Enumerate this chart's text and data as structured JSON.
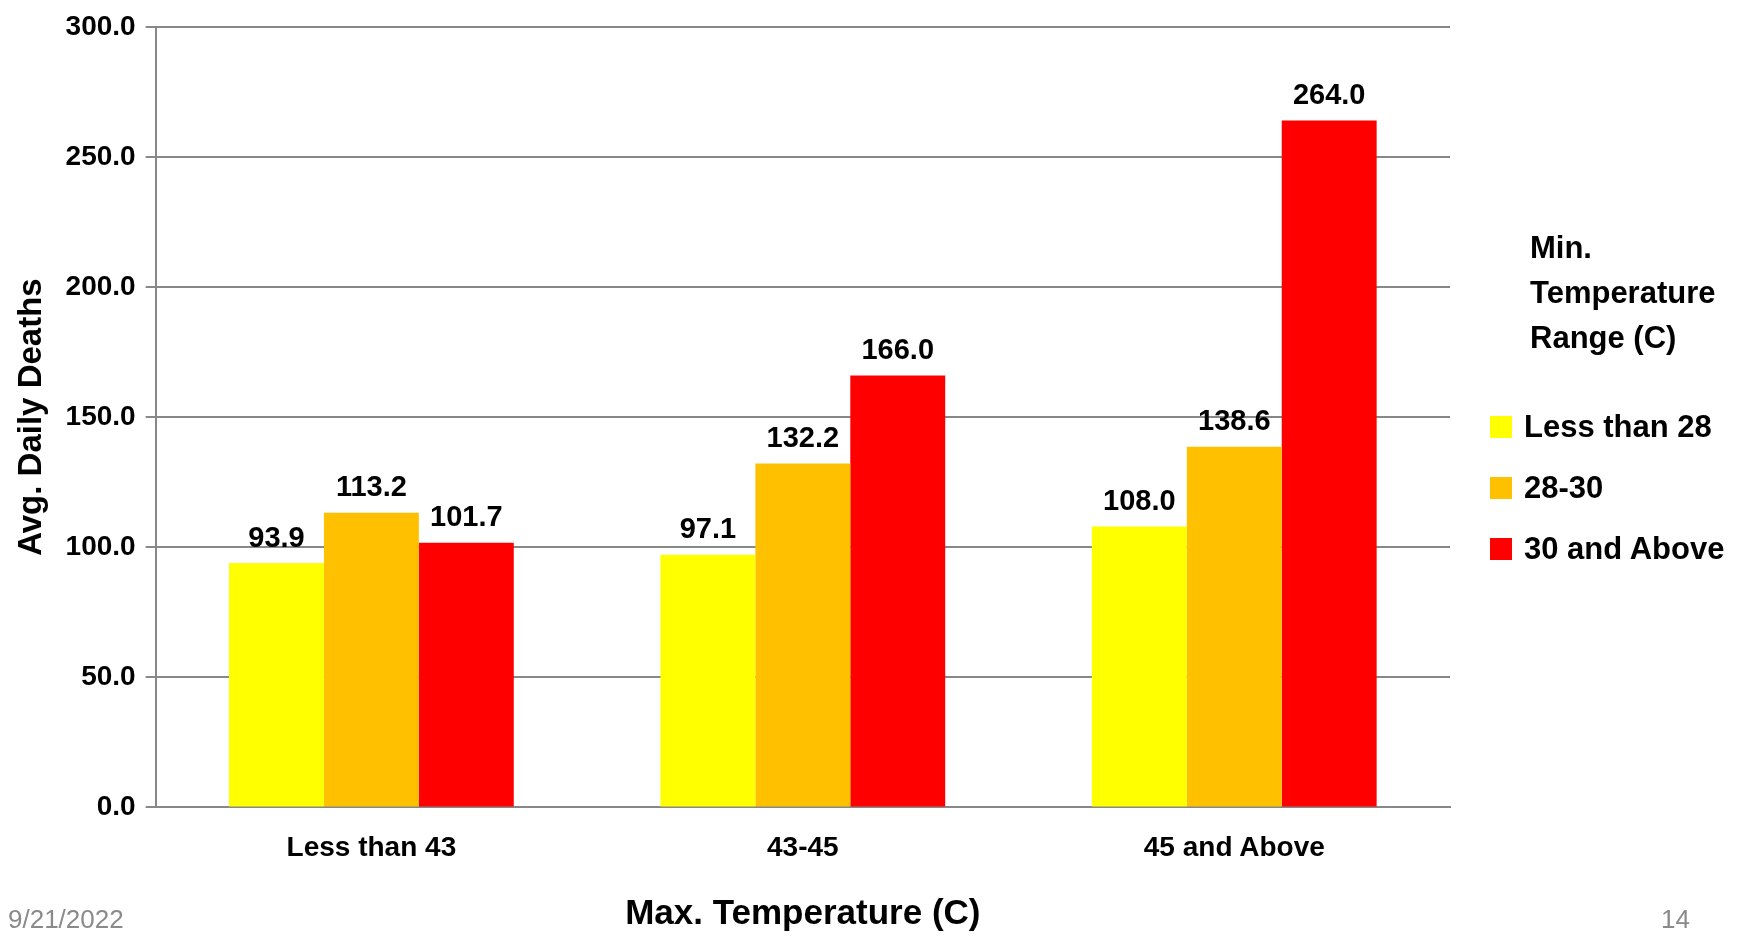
{
  "chart_data": {
    "type": "bar",
    "xlabel": "Max. Temperature (C)",
    "ylabel": "Avg. Daily Deaths",
    "legend_title": "Min. Temperature Range (C)",
    "legend": "right",
    "grid": "y",
    "categories": [
      "Less than 43",
      "43-45",
      "45 and Above"
    ],
    "series": [
      {
        "name": "Less than 28",
        "color": "#ffff00",
        "values": [
          93.9,
          97.1,
          108.0
        ],
        "value_labels": [
          "93.9",
          "97.1",
          "108.0"
        ]
      },
      {
        "name": "28-30",
        "color": "#ffc000",
        "values": [
          113.2,
          132.2,
          138.6
        ],
        "value_labels": [
          "113.2",
          "132.2",
          "138.6"
        ]
      },
      {
        "name": "30 and Above",
        "color": "#ff0000",
        "values": [
          101.7,
          166.0,
          264.0
        ],
        "value_labels": [
          "101.7",
          "166.0",
          "264.0"
        ]
      }
    ],
    "ylim": [
      0,
      300
    ],
    "yticks": [
      {
        "value": 0,
        "label": "0.0"
      },
      {
        "value": 50,
        "label": "50.0"
      },
      {
        "value": 100,
        "label": "100.0"
      },
      {
        "value": 150,
        "label": "150.0"
      },
      {
        "value": 200,
        "label": "200.0"
      },
      {
        "value": 250,
        "label": "250.0"
      },
      {
        "value": 300,
        "label": "300.0"
      }
    ],
    "annotations": [
      "9/21/2022",
      "14"
    ]
  }
}
